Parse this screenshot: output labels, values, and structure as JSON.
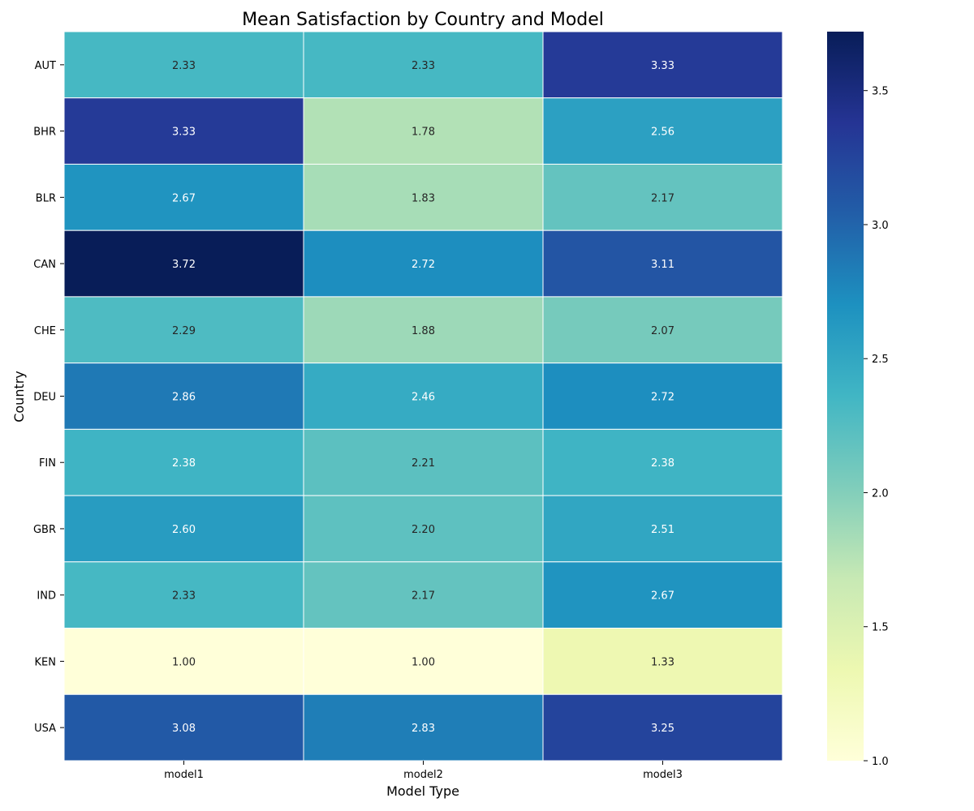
{
  "chart_data": {
    "type": "heatmap",
    "title": "Mean Satisfaction by Country and Model",
    "xlabel": "Model Type",
    "ylabel": "Country",
    "x_categories": [
      "model1",
      "model2",
      "model3"
    ],
    "y_categories": [
      "AUT",
      "BHR",
      "BLR",
      "CAN",
      "CHE",
      "DEU",
      "FIN",
      "GBR",
      "IND",
      "KEN",
      "USA"
    ],
    "values": [
      [
        2.33,
        2.33,
        3.33
      ],
      [
        3.33,
        1.78,
        2.56
      ],
      [
        2.67,
        1.83,
        2.17
      ],
      [
        3.72,
        2.72,
        3.11
      ],
      [
        2.29,
        1.88,
        2.07
      ],
      [
        2.86,
        2.46,
        2.72
      ],
      [
        2.38,
        2.21,
        2.38
      ],
      [
        2.6,
        2.2,
        2.51
      ],
      [
        2.33,
        2.17,
        2.67
      ],
      [
        1.0,
        1.0,
        1.33
      ],
      [
        3.08,
        2.83,
        3.25
      ]
    ],
    "value_labels": [
      [
        "2.33",
        "2.33",
        "3.33"
      ],
      [
        "3.33",
        "1.78",
        "2.56"
      ],
      [
        "2.67",
        "1.83",
        "2.17"
      ],
      [
        "3.72",
        "2.72",
        "3.11"
      ],
      [
        "2.29",
        "1.88",
        "2.07"
      ],
      [
        "2.86",
        "2.46",
        "2.72"
      ],
      [
        "2.38",
        "2.21",
        "2.38"
      ],
      [
        "2.60",
        "2.20",
        "2.51"
      ],
      [
        "2.33",
        "2.17",
        "2.67"
      ],
      [
        "1.00",
        "1.00",
        "1.33"
      ],
      [
        "3.08",
        "2.83",
        "3.25"
      ]
    ],
    "colormap": "YlGnBu",
    "colorbar_range": [
      1.0,
      3.72
    ],
    "colorbar_ticks": [
      "1.0",
      "1.5",
      "2.0",
      "2.5",
      "3.0",
      "3.5"
    ],
    "grid": false,
    "colorbar_position": "right"
  }
}
